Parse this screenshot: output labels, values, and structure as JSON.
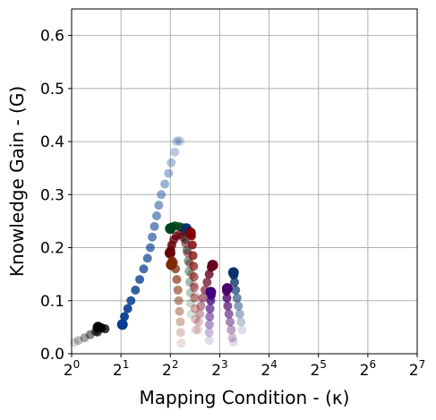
{
  "chart_data": {
    "type": "scatter",
    "title": "",
    "xlabel": "Mapping Condition - (κ)",
    "ylabel": "Knowledge Gain - (G)",
    "xscale": "log2",
    "xlim": [
      1,
      128
    ],
    "ylim": [
      0.0,
      0.65
    ],
    "grid": true,
    "x_ticks": [
      {
        "value": 1,
        "base": "2",
        "exp": "0"
      },
      {
        "value": 2,
        "base": "2",
        "exp": "1"
      },
      {
        "value": 4,
        "base": "2",
        "exp": "2"
      },
      {
        "value": 8,
        "base": "2",
        "exp": "3"
      },
      {
        "value": 16,
        "base": "2",
        "exp": "4"
      },
      {
        "value": 32,
        "base": "2",
        "exp": "5"
      },
      {
        "value": 64,
        "base": "2",
        "exp": "6"
      },
      {
        "value": 128,
        "base": "2",
        "exp": "7"
      }
    ],
    "y_ticks": [
      {
        "value": 0.0,
        "label": "0.0"
      },
      {
        "value": 0.1,
        "label": "0.1"
      },
      {
        "value": 0.2,
        "label": "0.2"
      },
      {
        "value": 0.3,
        "label": "0.3"
      },
      {
        "value": 0.4,
        "label": "0.4"
      },
      {
        "value": 0.5,
        "label": "0.5"
      },
      {
        "value": 0.6,
        "label": "0.6"
      }
    ],
    "series": [
      {
        "color": "#000000",
        "colormap": "Greys",
        "points": [
          [
            1.45,
            0.05
          ],
          [
            1.52,
            0.049
          ],
          [
            1.6,
            0.047
          ],
          [
            1.44,
            0.041
          ],
          [
            1.4,
            0.042
          ],
          [
            1.3,
            0.036
          ],
          [
            1.2,
            0.03
          ],
          [
            1.1,
            0.025
          ],
          [
            1.04,
            0.021
          ]
        ]
      },
      {
        "color": "#0a3d8f",
        "colormap": "Blues",
        "points": [
          [
            2.04,
            0.055
          ],
          [
            2.1,
            0.07
          ],
          [
            2.2,
            0.085
          ],
          [
            2.3,
            0.1
          ],
          [
            2.45,
            0.12
          ],
          [
            2.6,
            0.14
          ],
          [
            2.75,
            0.16
          ],
          [
            2.9,
            0.18
          ],
          [
            3.02,
            0.2
          ],
          [
            3.1,
            0.22
          ],
          [
            3.2,
            0.24
          ],
          [
            3.3,
            0.26
          ],
          [
            3.4,
            0.28
          ],
          [
            3.52,
            0.3
          ],
          [
            3.7,
            0.32
          ],
          [
            3.9,
            0.34
          ],
          [
            4.05,
            0.36
          ],
          [
            4.25,
            0.38
          ],
          [
            4.35,
            0.4
          ],
          [
            4.5,
            0.402
          ],
          [
            4.6,
            0.4
          ]
        ]
      },
      {
        "color": "#00441b",
        "colormap": "Greens",
        "points": [
          [
            4.0,
            0.236
          ],
          [
            4.08,
            0.239
          ],
          [
            4.25,
            0.241
          ],
          [
            4.5,
            0.24
          ],
          [
            4.7,
            0.238
          ],
          [
            4.85,
            0.23
          ],
          [
            4.95,
            0.215
          ],
          [
            5.05,
            0.195
          ],
          [
            5.15,
            0.175
          ],
          [
            5.2,
            0.155
          ],
          [
            5.25,
            0.135
          ],
          [
            5.3,
            0.115
          ],
          [
            5.32,
            0.095
          ],
          [
            5.35,
            0.075
          ]
        ]
      },
      {
        "color": "#67000d",
        "colormap": "Reds",
        "points": [
          [
            3.98,
            0.19
          ],
          [
            4.02,
            0.195
          ],
          [
            4.08,
            0.205
          ],
          [
            4.2,
            0.215
          ],
          [
            4.35,
            0.222
          ],
          [
            4.55,
            0.225
          ],
          [
            4.75,
            0.22
          ],
          [
            4.95,
            0.208
          ],
          [
            5.1,
            0.19
          ],
          [
            5.25,
            0.17
          ],
          [
            5.4,
            0.15
          ],
          [
            5.55,
            0.13
          ],
          [
            5.65,
            0.11
          ]
        ]
      },
      {
        "color": "#7f2704",
        "colormap": "Oranges",
        "points": [
          [
            4.05,
            0.168
          ],
          [
            4.1,
            0.175
          ],
          [
            4.18,
            0.172
          ],
          [
            4.3,
            0.16
          ],
          [
            4.38,
            0.14
          ],
          [
            4.45,
            0.12
          ],
          [
            4.5,
            0.1
          ],
          [
            4.55,
            0.08
          ],
          [
            4.6,
            0.06
          ],
          [
            4.62,
            0.04
          ],
          [
            4.65,
            0.02
          ]
        ]
      },
      {
        "color": "#08306b",
        "colormap": "Blues",
        "points": [
          [
            5.0,
            0.236
          ],
          [
            5.05,
            0.233
          ],
          [
            5.15,
            0.229
          ]
        ]
      },
      {
        "color": "#7f0000",
        "colormap": "YlOrRd",
        "points": [
          [
            5.3,
            0.228
          ],
          [
            5.38,
            0.222
          ],
          [
            5.45,
            0.205
          ],
          [
            5.5,
            0.185
          ],
          [
            5.55,
            0.165
          ],
          [
            5.58,
            0.145
          ],
          [
            5.6,
            0.125
          ],
          [
            5.62,
            0.105
          ],
          [
            5.65,
            0.085
          ],
          [
            5.68,
            0.065
          ],
          [
            5.7,
            0.045
          ]
        ]
      },
      {
        "color": "#67001f",
        "colormap": "RdPu",
        "points": [
          [
            7.25,
            0.167
          ],
          [
            7.1,
            0.163
          ],
          [
            6.9,
            0.15
          ],
          [
            6.7,
            0.135
          ],
          [
            6.5,
            0.12
          ],
          [
            6.3,
            0.105
          ],
          [
            6.15,
            0.09
          ],
          [
            6.05,
            0.075
          ],
          [
            5.95,
            0.06
          ],
          [
            5.9,
            0.045
          ]
        ]
      },
      {
        "color": "#3f007d",
        "colormap": "Purples",
        "points": [
          [
            7.05,
            0.116
          ],
          [
            7.1,
            0.11
          ],
          [
            7.05,
            0.1
          ],
          [
            6.98,
            0.085
          ],
          [
            6.95,
            0.07
          ],
          [
            6.92,
            0.055
          ],
          [
            6.9,
            0.04
          ],
          [
            6.9,
            0.025
          ]
        ]
      },
      {
        "color": "#49006a",
        "colormap": "PuRd",
        "points": [
          [
            8.9,
            0.123
          ],
          [
            8.8,
            0.118
          ],
          [
            8.85,
            0.105
          ],
          [
            8.95,
            0.09
          ],
          [
            9.1,
            0.075
          ],
          [
            9.25,
            0.06
          ],
          [
            9.4,
            0.045
          ],
          [
            9.55,
            0.03
          ],
          [
            9.7,
            0.022
          ]
        ]
      },
      {
        "color": "#08306b",
        "colormap": "GnBu",
        "points": [
          [
            9.7,
            0.153
          ],
          [
            9.75,
            0.148
          ],
          [
            9.85,
            0.135
          ],
          [
            10.0,
            0.12
          ],
          [
            10.2,
            0.105
          ],
          [
            10.4,
            0.09
          ],
          [
            10.6,
            0.075
          ],
          [
            10.8,
            0.06
          ],
          [
            10.95,
            0.045
          ]
        ]
      }
    ]
  }
}
